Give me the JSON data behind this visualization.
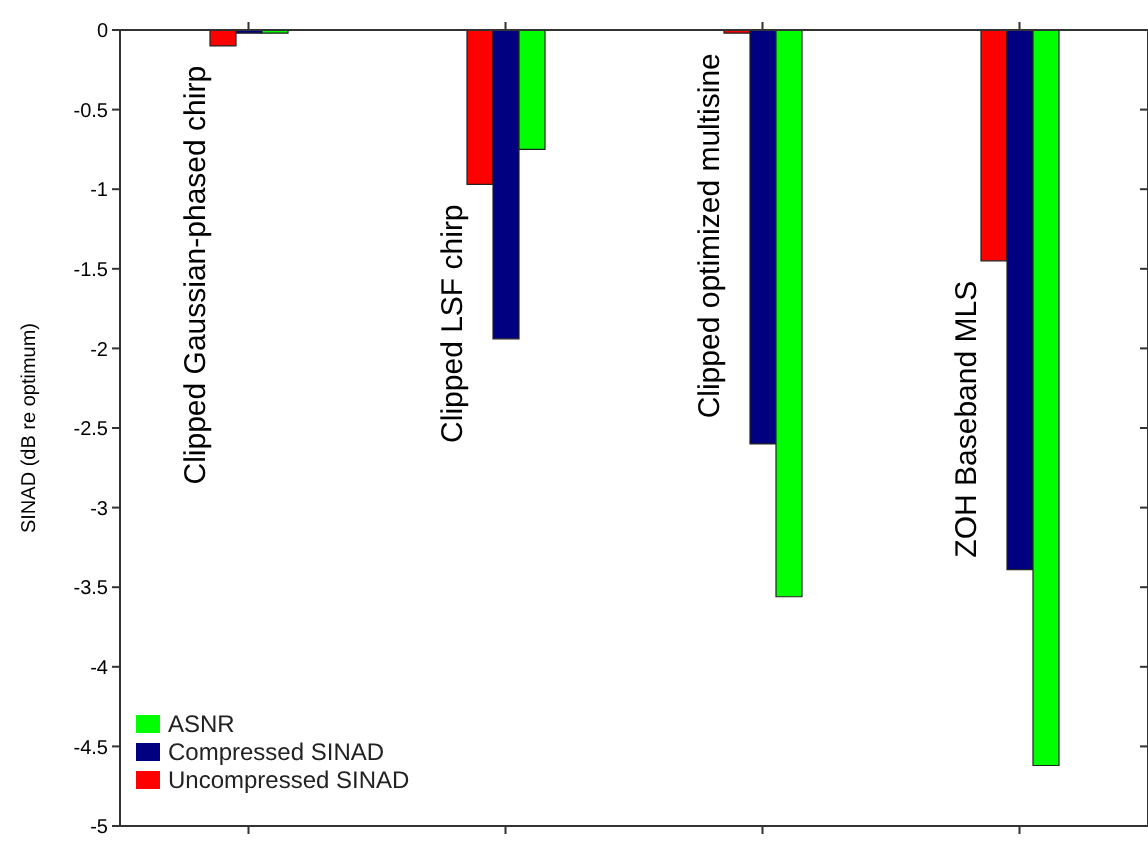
{
  "chart_data": {
    "type": "bar",
    "ylabel": "SINAD (dB re optimum)",
    "categories": [
      "Clipped Gaussian-phased chirp",
      "Clipped LSF chirp",
      "Clipped optimized multisine",
      "ZOH Baseband MLS"
    ],
    "series": [
      {
        "name": "Uncompressed SINAD",
        "color": "#ff0000",
        "values": [
          -0.1,
          -0.97,
          -0.02,
          -1.45
        ]
      },
      {
        "name": "Compressed SINAD",
        "color": "#000080",
        "values": [
          -0.02,
          -1.94,
          -2.6,
          -3.39
        ]
      },
      {
        "name": "ASNR",
        "color": "#00ff00",
        "values": [
          -0.02,
          -0.75,
          -3.56,
          -4.62
        ]
      }
    ],
    "ylim": [
      -5,
      0
    ],
    "yticks": [
      -5,
      -4.5,
      -4,
      -3.5,
      -3,
      -2.5,
      -2,
      -1.5,
      -1,
      -0.5,
      0
    ],
    "grid": false,
    "legend": "bottom left"
  }
}
